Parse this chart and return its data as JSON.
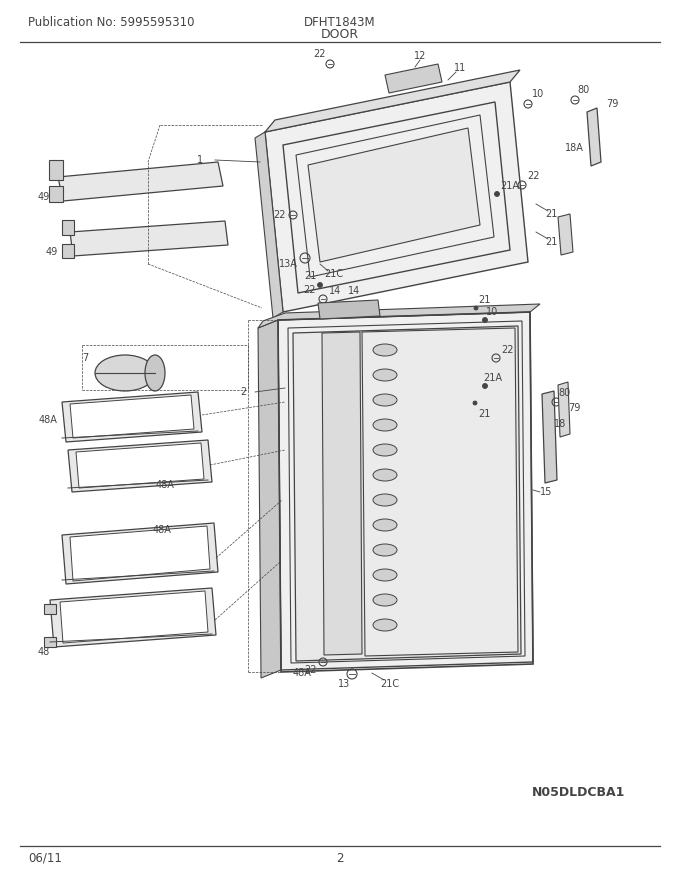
{
  "title_pub": "Publication No: 5995595310",
  "title_model": "DFHT1843M",
  "title_section": "DOOR",
  "footer_date": "06/11",
  "footer_page": "2",
  "catalog_num": "N05DLDCBA1",
  "bg_color": "#ffffff",
  "line_color": "#444444",
  "label_fontsize": 7.0,
  "header_fontsize": 8.5
}
